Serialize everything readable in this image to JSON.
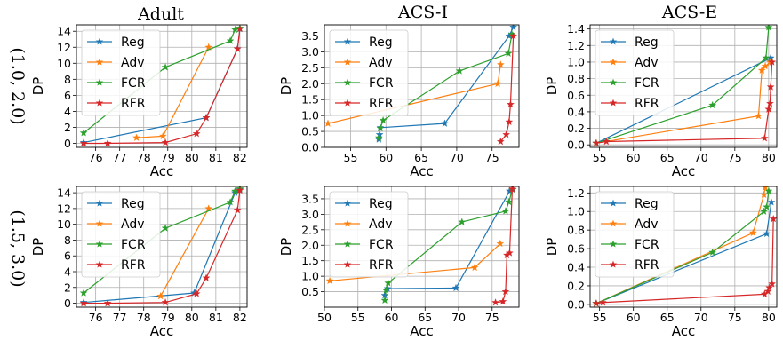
{
  "figure": {
    "column_titles": [
      "Adult",
      "ACS-I",
      "ACS-E"
    ],
    "row_labels": [
      "(1.0, 2.0)",
      "(1.5, 3.0)"
    ]
  },
  "colors": {
    "Reg": "#1f77b4",
    "Adv": "#ff7f0e",
    "FCR": "#2ca02c",
    "RFR": "#d62728"
  },
  "chart_data": [
    {
      "type": "line",
      "dataset": "Adult",
      "setting": "(1.0, 2.0)",
      "xlabel": "Acc",
      "ylabel": "DP",
      "grid": true,
      "legend": "upper-left",
      "xlim": [
        75.2,
        82.3
      ],
      "ylim": [
        -0.5,
        14.8
      ],
      "xticks": [
        76,
        77,
        78,
        79,
        80,
        81,
        82
      ],
      "yticks": [
        0,
        2,
        4,
        6,
        8,
        10,
        12,
        14
      ],
      "series": [
        {
          "name": "Reg",
          "x": [
            75.5,
            80.6,
            81.9,
            82.0
          ],
          "y": [
            0.1,
            3.2,
            11.8,
            14.3
          ]
        },
        {
          "name": "Adv",
          "x": [
            77.7,
            78.8,
            80.7
          ],
          "y": [
            0.7,
            0.9,
            12.0
          ]
        },
        {
          "name": "FCR",
          "x": [
            75.5,
            78.9,
            81.6,
            81.8,
            82.0
          ],
          "y": [
            1.3,
            9.5,
            12.8,
            14.2,
            14.4
          ]
        },
        {
          "name": "RFR",
          "x": [
            75.5,
            76.5,
            78.9,
            80.2,
            80.6,
            81.9,
            82.0
          ],
          "y": [
            0.0,
            0.0,
            0.1,
            1.2,
            3.2,
            11.8,
            14.3
          ]
        }
      ]
    },
    {
      "type": "line",
      "dataset": "ACS-I",
      "setting": "(1.0, 2.0)",
      "xlabel": "Acc",
      "ylabel": "DP",
      "grid": true,
      "legend": "upper-left",
      "xlim": [
        51.3,
        78.8
      ],
      "ylim": [
        0.0,
        3.85
      ],
      "xticks": [
        55,
        60,
        65,
        70,
        75
      ],
      "yticks": [
        0.0,
        0.5,
        1.0,
        1.5,
        2.0,
        2.5,
        3.0,
        3.5
      ],
      "series": [
        {
          "name": "Reg",
          "x": [
            59.0,
            59.1,
            59.2,
            68.3,
            77.4,
            78.0
          ],
          "y": [
            0.25,
            0.4,
            0.62,
            0.75,
            3.5,
            3.78
          ]
        },
        {
          "name": "Adv",
          "x": [
            51.8,
            75.8,
            76.2
          ],
          "y": [
            0.75,
            2.0,
            2.6
          ]
        },
        {
          "name": "FCR",
          "x": [
            59.0,
            59.2,
            59.6,
            70.4,
            77.3,
            77.8
          ],
          "y": [
            0.3,
            0.6,
            0.85,
            2.4,
            2.95,
            3.55
          ]
        },
        {
          "name": "RFR",
          "x": [
            76.2,
            77.0,
            77.4,
            77.6,
            78.0
          ],
          "y": [
            0.18,
            0.4,
            0.8,
            1.35,
            3.5
          ]
        }
      ]
    },
    {
      "type": "line",
      "dataset": "ACS-E",
      "setting": "(1.0, 2.0)",
      "xlabel": "Acc",
      "ylabel": "DP",
      "grid": true,
      "legend": "upper-left",
      "xlim": [
        53.6,
        81.2
      ],
      "ylim": [
        -0.03,
        1.45
      ],
      "xticks": [
        55,
        60,
        65,
        70,
        75,
        80
      ],
      "yticks": [
        0.0,
        0.2,
        0.4,
        0.6,
        0.8,
        1.0,
        1.2,
        1.4
      ],
      "series": [
        {
          "name": "Reg",
          "x": [
            54.5,
            80.3
          ],
          "y": [
            0.02,
            1.05
          ]
        },
        {
          "name": "Adv",
          "x": [
            54.5,
            78.5,
            79.0,
            79.5,
            80.2
          ],
          "y": [
            0.02,
            0.35,
            0.9,
            0.95,
            1.0
          ]
        },
        {
          "name": "FCR",
          "x": [
            54.5,
            71.7,
            79.6,
            80.0
          ],
          "y": [
            0.02,
            0.48,
            1.05,
            1.42
          ]
        },
        {
          "name": "RFR",
          "x": [
            54.5,
            56.0,
            79.4,
            80.0,
            80.2,
            80.3,
            80.5
          ],
          "y": [
            0.02,
            0.04,
            0.08,
            0.43,
            0.5,
            0.7,
            1.0
          ]
        }
      ]
    },
    {
      "type": "line",
      "dataset": "Adult",
      "setting": "(1.5, 3.0)",
      "xlabel": "Acc",
      "ylabel": "DP",
      "grid": true,
      "legend": "upper-left",
      "xlim": [
        75.2,
        82.3
      ],
      "ylim": [
        -0.5,
        14.8
      ],
      "xticks": [
        76,
        77,
        78,
        79,
        80,
        81,
        82
      ],
      "yticks": [
        0,
        2,
        4,
        6,
        8,
        10,
        12,
        14
      ],
      "series": [
        {
          "name": "Reg",
          "x": [
            75.5,
            80.1,
            81.8,
            82.0
          ],
          "y": [
            0.1,
            1.3,
            14.0,
            14.4
          ]
        },
        {
          "name": "Adv",
          "x": [
            78.7,
            80.7
          ],
          "y": [
            0.9,
            12.0
          ]
        },
        {
          "name": "FCR",
          "x": [
            75.5,
            78.9,
            81.6,
            81.8,
            82.0
          ],
          "y": [
            1.3,
            9.5,
            12.8,
            14.2,
            14.5
          ]
        },
        {
          "name": "RFR",
          "x": [
            75.5,
            76.5,
            78.9,
            80.2,
            80.6,
            81.9,
            82.0
          ],
          "y": [
            0.0,
            0.0,
            0.1,
            1.2,
            3.2,
            11.8,
            14.3
          ]
        }
      ]
    },
    {
      "type": "line",
      "dataset": "ACS-I",
      "setting": "(1.5, 3.0)",
      "xlabel": "Acc",
      "ylabel": "DP",
      "grid": true,
      "legend": "upper-left",
      "xlim": [
        50.0,
        79.0
      ],
      "ylim": [
        0.0,
        3.9
      ],
      "xticks": [
        50,
        55,
        60,
        65,
        70,
        75
      ],
      "yticks": [
        0.5,
        1.0,
        1.5,
        2.0,
        2.5,
        3.0,
        3.5
      ],
      "series": [
        {
          "name": "Reg",
          "x": [
            59.0,
            59.2,
            59.4,
            69.6,
            77.6,
            78.1
          ],
          "y": [
            0.38,
            0.55,
            0.6,
            0.62,
            3.75,
            3.8
          ]
        },
        {
          "name": "Adv",
          "x": [
            50.8,
            72.4,
            76.2
          ],
          "y": [
            0.85,
            1.28,
            2.05
          ]
        },
        {
          "name": "FCR",
          "x": [
            59.0,
            59.2,
            59.5,
            70.5,
            77.0,
            77.5,
            78.0
          ],
          "y": [
            0.22,
            0.55,
            0.78,
            2.75,
            3.1,
            3.4,
            3.8
          ]
        },
        {
          "name": "RFR",
          "x": [
            75.5,
            76.6,
            77.0,
            77.2,
            77.6,
            78.0
          ],
          "y": [
            0.15,
            0.18,
            0.5,
            1.68,
            1.75,
            3.82
          ]
        }
      ]
    },
    {
      "type": "line",
      "dataset": "ACS-E",
      "setting": "(1.5, 3.0)",
      "xlabel": "Acc",
      "ylabel": "DP",
      "grid": true,
      "legend": "upper-left",
      "xlim": [
        53.6,
        81.2
      ],
      "ylim": [
        -0.03,
        1.27
      ],
      "xticks": [
        55,
        60,
        65,
        70,
        75,
        80
      ],
      "yticks": [
        0.0,
        0.2,
        0.4,
        0.6,
        0.8,
        1.0,
        1.2
      ],
      "series": [
        {
          "name": "Reg",
          "x": [
            54.5,
            79.7,
            80.4
          ],
          "y": [
            0.01,
            0.76,
            1.1
          ]
        },
        {
          "name": "Adv",
          "x": [
            54.5,
            77.7,
            79.3,
            79.5
          ],
          "y": [
            0.01,
            0.77,
            1.18,
            1.26
          ]
        },
        {
          "name": "FCR",
          "x": [
            54.5,
            71.7,
            79.3,
            79.7,
            80.0
          ],
          "y": [
            0.01,
            0.56,
            1.0,
            1.05,
            1.22
          ]
        },
        {
          "name": "RFR",
          "x": [
            54.5,
            55.5,
            79.4,
            79.9,
            80.1,
            80.5,
            80.7
          ],
          "y": [
            0.01,
            0.02,
            0.11,
            0.14,
            0.18,
            0.22,
            0.92
          ]
        }
      ]
    }
  ]
}
